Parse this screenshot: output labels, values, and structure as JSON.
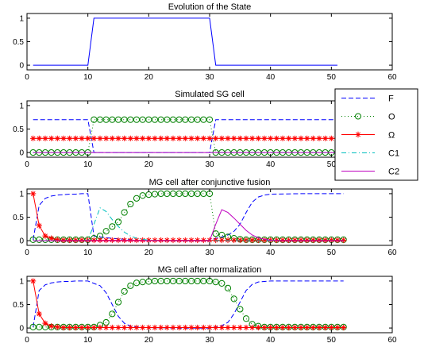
{
  "chart_data": [
    {
      "type": "line",
      "title": "Evolution of the State",
      "xlim": [
        0,
        60
      ],
      "ylim": [
        -0.1,
        1.1
      ],
      "xticks": [
        0,
        10,
        20,
        30,
        40,
        50,
        60
      ],
      "yticks": [
        0,
        0.5,
        1
      ],
      "series": [
        {
          "key": "state",
          "style": "solid",
          "color": "#0000ff",
          "marker": "none",
          "x": [
            1,
            10,
            11,
            30,
            31,
            51
          ],
          "y": [
            0,
            0,
            1,
            1,
            0,
            0
          ]
        }
      ]
    },
    {
      "type": "line",
      "title": "Simulated SG cell",
      "xlim": [
        0,
        60
      ],
      "ylim": [
        -0.1,
        1.1
      ],
      "xticks": [
        0,
        10,
        20,
        30,
        40,
        50,
        60
      ],
      "yticks": [
        0,
        0.5,
        1
      ],
      "legend": {
        "placement": "right",
        "entries": [
          {
            "label": "F",
            "style": "dashed",
            "color": "#0000ff",
            "marker": "none"
          },
          {
            "label": "O",
            "style": "dotted",
            "color": "#008000",
            "marker": "circle"
          },
          {
            "label": "Ω",
            "style": "solid",
            "color": "#ff0000",
            "marker": "star"
          },
          {
            "label": "C1",
            "style": "dashdot",
            "color": "#00bfbf",
            "marker": "none"
          },
          {
            "label": "C2",
            "style": "solid",
            "color": "#bf00bf",
            "marker": "none"
          }
        ]
      },
      "series": [
        {
          "key": "F",
          "style": "dashed",
          "color": "#0000ff",
          "marker": "none",
          "x": [
            1,
            10,
            11,
            30,
            31,
            51
          ],
          "y": [
            0.7,
            0.7,
            0.0,
            0.0,
            0.7,
            0.7
          ]
        },
        {
          "key": "O",
          "style": "dotted",
          "color": "#008000",
          "marker": "circle",
          "x": [
            1,
            2,
            3,
            4,
            5,
            6,
            7,
            8,
            9,
            10,
            11,
            12,
            13,
            14,
            15,
            16,
            17,
            18,
            19,
            20,
            21,
            22,
            23,
            24,
            25,
            26,
            27,
            28,
            29,
            30,
            31,
            32,
            33,
            34,
            35,
            36,
            37,
            38,
            39,
            40,
            41,
            42,
            43,
            44,
            45,
            46,
            47,
            48,
            49,
            50,
            51
          ],
          "y": [
            0,
            0,
            0,
            0,
            0,
            0,
            0,
            0,
            0,
            0,
            0.7,
            0.7,
            0.7,
            0.7,
            0.7,
            0.7,
            0.7,
            0.7,
            0.7,
            0.7,
            0.7,
            0.7,
            0.7,
            0.7,
            0.7,
            0.7,
            0.7,
            0.7,
            0.7,
            0.7,
            0,
            0,
            0,
            0,
            0,
            0,
            0,
            0,
            0,
            0,
            0,
            0,
            0,
            0,
            0,
            0,
            0,
            0,
            0,
            0,
            0
          ]
        },
        {
          "key": "Omega",
          "style": "solid",
          "color": "#ff0000",
          "marker": "star",
          "x": [
            1,
            2,
            3,
            4,
            5,
            6,
            7,
            8,
            9,
            10,
            11,
            12,
            13,
            14,
            15,
            16,
            17,
            18,
            19,
            20,
            21,
            22,
            23,
            24,
            25,
            26,
            27,
            28,
            29,
            30,
            31,
            32,
            33,
            34,
            35,
            36,
            37,
            38,
            39,
            40,
            41,
            42,
            43,
            44,
            45,
            46,
            47,
            48,
            49,
            50,
            51
          ],
          "y": [
            0.3,
            0.3,
            0.3,
            0.3,
            0.3,
            0.3,
            0.3,
            0.3,
            0.3,
            0.3,
            0.3,
            0.3,
            0.3,
            0.3,
            0.3,
            0.3,
            0.3,
            0.3,
            0.3,
            0.3,
            0.3,
            0.3,
            0.3,
            0.3,
            0.3,
            0.3,
            0.3,
            0.3,
            0.3,
            0.3,
            0.3,
            0.3,
            0.3,
            0.3,
            0.3,
            0.3,
            0.3,
            0.3,
            0.3,
            0.3,
            0.3,
            0.3,
            0.3,
            0.3,
            0.3,
            0.3,
            0.3,
            0.3,
            0.3,
            0.3,
            0.3
          ]
        },
        {
          "key": "C1",
          "style": "dashdot",
          "color": "#00bfbf",
          "marker": "none",
          "x": [
            1,
            51
          ],
          "y": [
            0,
            0
          ]
        },
        {
          "key": "C2",
          "style": "solid",
          "color": "#bf00bf",
          "marker": "none",
          "x": [
            1,
            51
          ],
          "y": [
            0,
            0
          ]
        }
      ]
    },
    {
      "type": "line",
      "title": "MG cell after conjunctive fusion",
      "xlim": [
        0,
        60
      ],
      "ylim": [
        -0.1,
        1.1
      ],
      "xticks": [
        0,
        10,
        20,
        30,
        40,
        50,
        60
      ],
      "yticks": [
        0,
        0.5,
        1
      ],
      "series": [
        {
          "key": "F",
          "style": "dashed",
          "color": "#0000ff",
          "marker": "none",
          "x": [
            1,
            2,
            3,
            4,
            5,
            6,
            7,
            8,
            9,
            10,
            11,
            12,
            13,
            14,
            15,
            16,
            17,
            18,
            19,
            20,
            25,
            30,
            31,
            32,
            33,
            34,
            35,
            36,
            37,
            38,
            39,
            40,
            45,
            52
          ],
          "y": [
            0.02,
            0.75,
            0.9,
            0.95,
            0.97,
            0.98,
            0.99,
            0.99,
            1.0,
            1.0,
            0.1,
            0.08,
            0.06,
            0.05,
            0.04,
            0.03,
            0.02,
            0.01,
            0.01,
            0.01,
            0.0,
            0.0,
            0.05,
            0.08,
            0.12,
            0.2,
            0.35,
            0.6,
            0.82,
            0.93,
            0.97,
            0.99,
            1.0,
            1.0
          ]
        },
        {
          "key": "O",
          "style": "dotted",
          "color": "#008000",
          "marker": "circle",
          "x": [
            1,
            2,
            3,
            4,
            5,
            6,
            7,
            8,
            9,
            10,
            11,
            12,
            13,
            14,
            15,
            16,
            17,
            18,
            19,
            20,
            21,
            22,
            23,
            24,
            25,
            26,
            27,
            28,
            29,
            30,
            31,
            32,
            33,
            34,
            35,
            36,
            37,
            38,
            39,
            40,
            41,
            42,
            43,
            44,
            45,
            46,
            47,
            48,
            49,
            50,
            51,
            52
          ],
          "y": [
            0.02,
            0.02,
            0.02,
            0.02,
            0.02,
            0.02,
            0.02,
            0.02,
            0.02,
            0.02,
            0.05,
            0.1,
            0.2,
            0.3,
            0.4,
            0.6,
            0.78,
            0.9,
            0.96,
            0.98,
            0.99,
            1.0,
            1.0,
            1.0,
            1.0,
            1.0,
            1.0,
            1.0,
            1.0,
            1.0,
            0.15,
            0.12,
            0.08,
            0.05,
            0.03,
            0.02,
            0.02,
            0.02,
            0.02,
            0.02,
            0.02,
            0.02,
            0.02,
            0.02,
            0.02,
            0.02,
            0.02,
            0.02,
            0.02,
            0.02,
            0.02,
            0.02
          ]
        },
        {
          "key": "Omega",
          "style": "solid",
          "color": "#ff0000",
          "marker": "star",
          "x": [
            1,
            2,
            3,
            4,
            5,
            6,
            7,
            8,
            9,
            10,
            11,
            12,
            13,
            14,
            15,
            16,
            17,
            18,
            19,
            20,
            21,
            22,
            23,
            24,
            25,
            26,
            27,
            28,
            29,
            30,
            31,
            32,
            33,
            34,
            35,
            36,
            37,
            38,
            39,
            40,
            41,
            42,
            43,
            44,
            45,
            46,
            47,
            48,
            49,
            50,
            51,
            52
          ],
          "y": [
            1.0,
            0.32,
            0.1,
            0.05,
            0.02,
            0.01,
            0.01,
            0.01,
            0.01,
            0.01,
            0.01,
            0.01,
            0.01,
            0.01,
            0.01,
            0.01,
            0.01,
            0.01,
            0.01,
            0.01,
            0.01,
            0.01,
            0.01,
            0.01,
            0.01,
            0.01,
            0.01,
            0.01,
            0.01,
            0.01,
            0.01,
            0.01,
            0.01,
            0.01,
            0.01,
            0.01,
            0.01,
            0.01,
            0.01,
            0.01,
            0.01,
            0.01,
            0.01,
            0.01,
            0.01,
            0.01,
            0.01,
            0.01,
            0.01,
            0.01,
            0.01,
            0.01
          ]
        },
        {
          "key": "C1",
          "style": "dashdot",
          "color": "#00bfbf",
          "marker": "none",
          "x": [
            1,
            10,
            11,
            12,
            13,
            14,
            15,
            16,
            17,
            18,
            19,
            20,
            22,
            52
          ],
          "y": [
            0,
            0,
            0.35,
            0.7,
            0.62,
            0.45,
            0.3,
            0.18,
            0.1,
            0.05,
            0.03,
            0.01,
            0.0,
            0.0
          ]
        },
        {
          "key": "C2",
          "style": "solid",
          "color": "#bf00bf",
          "marker": "none",
          "x": [
            1,
            30,
            31,
            32,
            33,
            34,
            35,
            36,
            37,
            38,
            39,
            40,
            42,
            52
          ],
          "y": [
            0,
            0,
            0.35,
            0.66,
            0.6,
            0.48,
            0.35,
            0.22,
            0.12,
            0.06,
            0.03,
            0.01,
            0.0,
            0.0
          ]
        }
      ]
    },
    {
      "type": "line",
      "title": "MG cell after normalization",
      "xlim": [
        0,
        60
      ],
      "ylim": [
        -0.1,
        1.1
      ],
      "xticks": [
        0,
        10,
        20,
        30,
        40,
        50,
        60
      ],
      "yticks": [
        0,
        0.5,
        1
      ],
      "series": [
        {
          "key": "F",
          "style": "dashed",
          "color": "#0000ff",
          "marker": "none",
          "x": [
            1,
            2,
            3,
            4,
            5,
            6,
            7,
            8,
            9,
            10,
            11,
            12,
            13,
            14,
            15,
            16,
            17,
            18,
            19,
            20,
            25,
            30,
            31,
            32,
            33,
            34,
            35,
            36,
            37,
            38,
            39,
            40,
            45,
            52
          ],
          "y": [
            0.02,
            0.8,
            0.92,
            0.96,
            0.98,
            0.99,
            0.99,
            1.0,
            1.0,
            1.0,
            0.95,
            0.9,
            0.75,
            0.5,
            0.25,
            0.1,
            0.04,
            0.02,
            0.01,
            0.01,
            0.0,
            0.0,
            0.02,
            0.05,
            0.12,
            0.3,
            0.55,
            0.8,
            0.93,
            0.98,
            0.99,
            1.0,
            1.0,
            1.0
          ]
        },
        {
          "key": "O",
          "style": "dotted",
          "color": "#008000",
          "marker": "circle",
          "x": [
            1,
            2,
            3,
            4,
            5,
            6,
            7,
            8,
            9,
            10,
            11,
            12,
            13,
            14,
            15,
            16,
            17,
            18,
            19,
            20,
            21,
            22,
            23,
            24,
            25,
            26,
            27,
            28,
            29,
            30,
            31,
            32,
            33,
            34,
            35,
            36,
            37,
            38,
            39,
            40,
            41,
            42,
            43,
            44,
            45,
            46,
            47,
            48,
            49,
            50,
            51,
            52
          ],
          "y": [
            0.02,
            0.02,
            0.02,
            0.02,
            0.02,
            0.02,
            0.02,
            0.02,
            0.02,
            0.02,
            0.02,
            0.06,
            0.12,
            0.3,
            0.55,
            0.78,
            0.9,
            0.96,
            0.98,
            0.99,
            1.0,
            1.0,
            1.0,
            1.0,
            1.0,
            1.0,
            1.0,
            1.0,
            1.0,
            1.0,
            0.98,
            0.95,
            0.85,
            0.62,
            0.4,
            0.2,
            0.08,
            0.04,
            0.02,
            0.02,
            0.02,
            0.02,
            0.02,
            0.02,
            0.02,
            0.02,
            0.02,
            0.02,
            0.02,
            0.02,
            0.02,
            0.02
          ]
        },
        {
          "key": "Omega",
          "style": "solid",
          "color": "#ff0000",
          "marker": "star",
          "x": [
            1,
            2,
            3,
            4,
            5,
            6,
            7,
            8,
            9,
            10,
            11,
            12,
            13,
            14,
            15,
            16,
            17,
            18,
            19,
            20,
            21,
            22,
            23,
            24,
            25,
            26,
            27,
            28,
            29,
            30,
            31,
            32,
            33,
            34,
            35,
            36,
            37,
            38,
            39,
            40,
            41,
            42,
            43,
            44,
            45,
            46,
            47,
            48,
            49,
            50,
            51,
            52
          ],
          "y": [
            1.0,
            0.3,
            0.1,
            0.04,
            0.02,
            0.01,
            0.01,
            0.01,
            0.01,
            0.01,
            0.01,
            0.01,
            0.01,
            0.01,
            0.01,
            0.01,
            0.01,
            0.01,
            0.01,
            0.01,
            0.01,
            0.01,
            0.01,
            0.01,
            0.01,
            0.01,
            0.01,
            0.01,
            0.01,
            0.01,
            0.01,
            0.01,
            0.01,
            0.01,
            0.01,
            0.01,
            0.01,
            0.01,
            0.01,
            0.01,
            0.01,
            0.01,
            0.01,
            0.01,
            0.01,
            0.01,
            0.01,
            0.01,
            0.01,
            0.01,
            0.01,
            0.01
          ]
        }
      ]
    }
  ]
}
